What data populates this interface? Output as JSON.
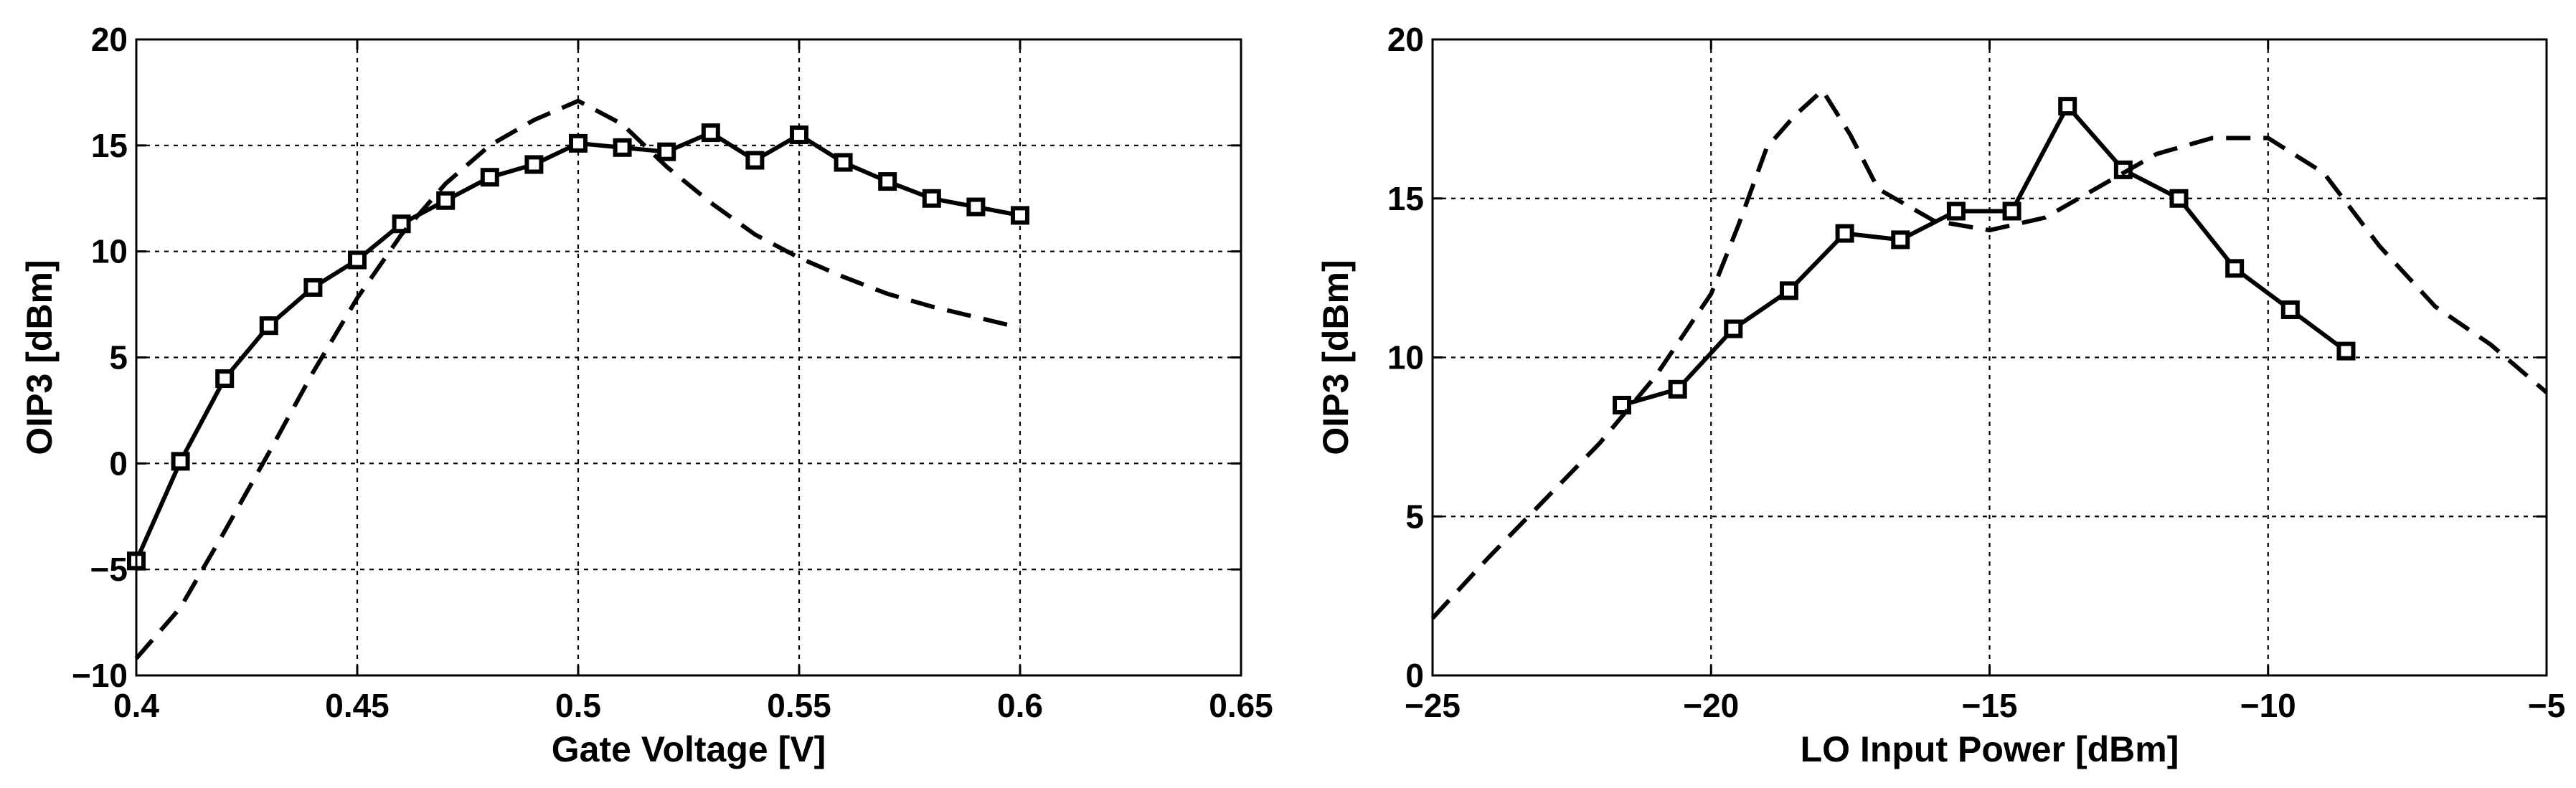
{
  "chart_data": [
    {
      "type": "line",
      "xlabel": "Gate Voltage [V]",
      "ylabel": "OIP3 [dBm]",
      "xlim": [
        0.4,
        0.65
      ],
      "ylim": [
        -10,
        20
      ],
      "xticks": [
        0.4,
        0.45,
        0.5,
        0.55,
        0.6,
        0.65
      ],
      "xtick_labels": [
        "0.4",
        "0.45",
        "0.5",
        "0.55",
        "0.6",
        "0.65"
      ],
      "yticks": [
        -10,
        -5,
        0,
        5,
        10,
        15,
        20
      ],
      "ytick_labels": [
        "−10",
        "−5",
        "0",
        "5",
        "10",
        "15",
        "20"
      ],
      "grid": true,
      "series": [
        {
          "style": "solid-square-markers",
          "x": [
            0.4,
            0.41,
            0.42,
            0.43,
            0.44,
            0.45,
            0.46,
            0.47,
            0.48,
            0.49,
            0.5,
            0.51,
            0.52,
            0.53,
            0.54,
            0.55,
            0.56,
            0.57,
            0.58,
            0.59,
            0.6
          ],
          "y": [
            -4.6,
            0.1,
            4.0,
            6.5,
            8.3,
            9.6,
            11.3,
            12.4,
            13.5,
            14.1,
            15.1,
            14.9,
            14.7,
            15.6,
            14.3,
            15.5,
            14.2,
            13.3,
            12.5,
            12.1,
            11.7
          ]
        },
        {
          "style": "dashed",
          "x": [
            0.4,
            0.41,
            0.42,
            0.43,
            0.44,
            0.45,
            0.46,
            0.47,
            0.48,
            0.49,
            0.5,
            0.51,
            0.52,
            0.53,
            0.54,
            0.55,
            0.56,
            0.57,
            0.58,
            0.59,
            0.6
          ],
          "y": [
            -9.2,
            -6.8,
            -3.2,
            0.5,
            4.3,
            7.8,
            10.8,
            13.2,
            15.0,
            16.2,
            17.1,
            16.0,
            14.0,
            12.3,
            10.8,
            9.7,
            8.8,
            8.0,
            7.4,
            6.9,
            6.4
          ]
        }
      ]
    },
    {
      "type": "line",
      "xlabel": "LO Input Power [dBm]",
      "ylabel": "OIP3 [dBm]",
      "xlim": [
        -25,
        -5
      ],
      "ylim": [
        0,
        20
      ],
      "xticks": [
        -25,
        -20,
        -15,
        -10,
        -5
      ],
      "xtick_labels": [
        "−25",
        "−20",
        "−15",
        "−10",
        "−5"
      ],
      "yticks": [
        0,
        5,
        10,
        15,
        20
      ],
      "ytick_labels": [
        "0",
        "5",
        "10",
        "15",
        "20"
      ],
      "grid": true,
      "series": [
        {
          "style": "solid-square-markers",
          "x": [
            -21.6,
            -20.6,
            -19.6,
            -18.6,
            -17.6,
            -16.6,
            -15.6,
            -14.6,
            -13.6,
            -12.6,
            -11.6,
            -10.6,
            -9.6,
            -8.6
          ],
          "y": [
            8.5,
            9.0,
            10.9,
            12.1,
            13.9,
            13.7,
            14.6,
            14.6,
            17.9,
            15.9,
            15.0,
            12.8,
            11.5,
            10.2
          ]
        },
        {
          "style": "dashed",
          "x": [
            -25,
            -24,
            -23,
            -22,
            -21,
            -20,
            -19.5,
            -19,
            -18.5,
            -18,
            -17.5,
            -17,
            -16,
            -15,
            -14,
            -13,
            -12,
            -11,
            -10,
            -9,
            -8,
            -7,
            -6,
            -5
          ],
          "y": [
            1.8,
            3.7,
            5.5,
            7.3,
            9.4,
            12.0,
            14.2,
            16.6,
            17.6,
            18.4,
            17.0,
            15.3,
            14.3,
            14.0,
            14.4,
            15.4,
            16.4,
            16.9,
            16.9,
            15.8,
            13.5,
            11.6,
            10.4,
            8.9
          ]
        }
      ]
    }
  ]
}
